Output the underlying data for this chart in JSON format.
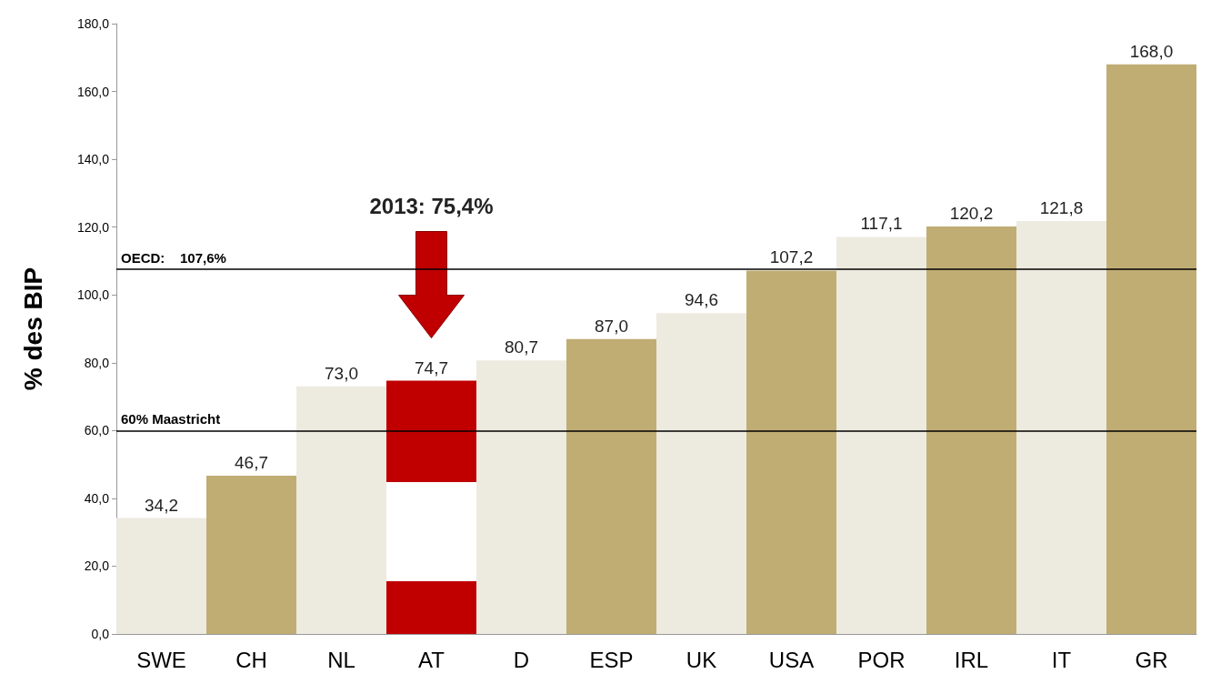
{
  "chart_data": {
    "type": "bar",
    "ylabel": "% des BIP",
    "categories": [
      "SWE",
      "CH",
      "NL",
      "AT",
      "D",
      "ESP",
      "UK",
      "USA",
      "POR",
      "IRL",
      "IT",
      "GR"
    ],
    "values": [
      34.2,
      46.7,
      73.0,
      74.7,
      80.7,
      87.0,
      94.6,
      107.2,
      117.1,
      120.2,
      121.8,
      168.0
    ],
    "value_labels": [
      "34,2",
      "46,7",
      "73,0",
      "74,7",
      "80,7",
      "87,0",
      "94,6",
      "107,2",
      "117,1",
      "120,2",
      "121,8",
      "168,0"
    ],
    "colors": [
      "#edeae0",
      "#c0ad74",
      "#edeae0",
      "#c00000",
      "#edeae0",
      "#c0ad74",
      "#edeae0",
      "#c0ad74",
      "#edeae0",
      "#c0ad74",
      "#edeae0",
      "#c0ad74"
    ],
    "ylim": [
      0,
      180
    ],
    "yticks": [
      {
        "value": 0,
        "label": "0,0"
      },
      {
        "value": 20,
        "label": "20,0"
      },
      {
        "value": 40,
        "label": "40,0"
      },
      {
        "value": 60,
        "label": "60,0"
      },
      {
        "value": 80,
        "label": "80,0"
      },
      {
        "value": 100,
        "label": "100,0"
      },
      {
        "value": 120,
        "label": "120,0"
      },
      {
        "value": 140,
        "label": "140,0"
      },
      {
        "value": 160,
        "label": "160,0"
      },
      {
        "value": 180,
        "label": "180,0"
      }
    ],
    "grid": false,
    "ref_lines": [
      {
        "axis": "y",
        "value": 107.6,
        "label": "OECD:    107,6%",
        "color": "#000000"
      },
      {
        "axis": "y",
        "value": 60,
        "label": "60% Maastricht",
        "color": "#000000"
      }
    ],
    "annotations": [
      "2013: 75,4%"
    ]
  }
}
